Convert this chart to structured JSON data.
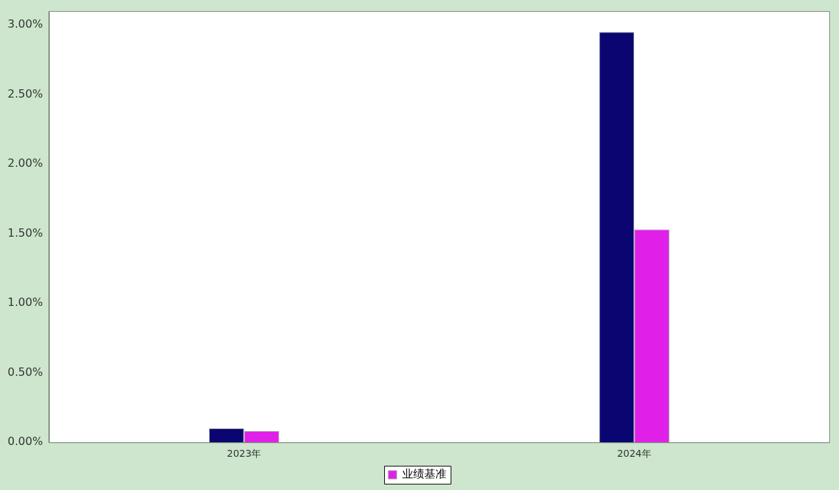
{
  "chart_data": {
    "type": "bar",
    "categories": [
      "2023年",
      "2024年"
    ],
    "series": [
      {
        "color": "#0a0570",
        "values": [
          0.1,
          2.95
        ]
      },
      {
        "name": "业绩基准",
        "color": "#e020e8",
        "values": [
          0.08,
          1.53
        ]
      }
    ],
    "ylim": [
      0,
      3.1
    ],
    "yticks": [
      {
        "value": 0,
        "label": "0.00%"
      },
      {
        "value": 0.5,
        "label": "0.50%"
      },
      {
        "value": 1,
        "label": "1.00%"
      },
      {
        "value": 1.5,
        "label": "1.50%"
      },
      {
        "value": 2,
        "label": "2.00%"
      },
      {
        "value": 2.5,
        "label": "2.50%"
      },
      {
        "value": 3,
        "label": "3.00%"
      }
    ],
    "grid": false,
    "legend": "bottom"
  }
}
